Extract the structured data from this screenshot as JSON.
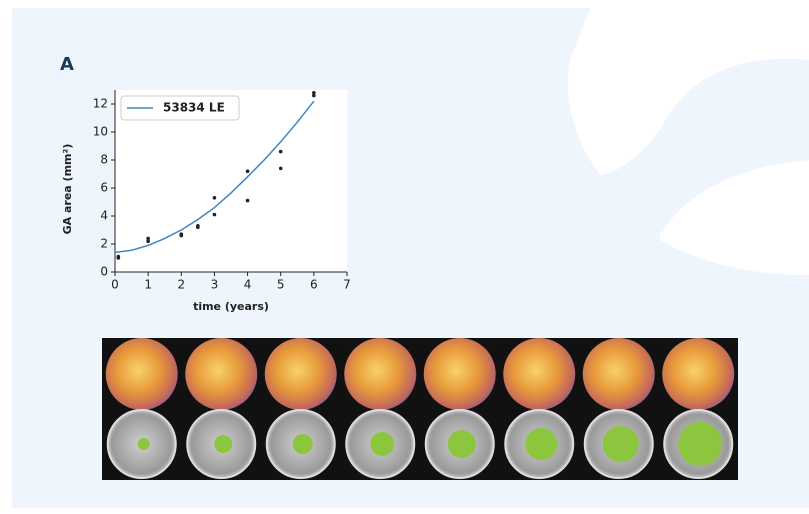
{
  "panel_label": "A",
  "chart_data": {
    "type": "scatter",
    "xlabel": "time (years)",
    "ylabel": "GA area (mm²)",
    "xlim": [
      0,
      7
    ],
    "ylim": [
      0,
      13
    ],
    "xticks": [
      0,
      1,
      2,
      3,
      4,
      5,
      6,
      7
    ],
    "yticks": [
      0,
      2,
      4,
      6,
      8,
      10,
      12
    ],
    "legend": "upper left",
    "series": [
      {
        "name": "53834 LE",
        "color": "#3a86c8",
        "mode": "line",
        "x": [
          0,
          0.5,
          1,
          1.5,
          2,
          2.5,
          3,
          3.5,
          4,
          4.5,
          5,
          5.5,
          6
        ],
        "values": [
          1.4,
          1.55,
          1.9,
          2.4,
          3.0,
          3.75,
          4.6,
          5.65,
          6.8,
          8.0,
          9.3,
          10.7,
          12.2
        ]
      },
      {
        "color": "#222222",
        "mode": "markers",
        "x": [
          0.1,
          0.1,
          1,
          1,
          2,
          2,
          2.5,
          2.5,
          3,
          3,
          4,
          4,
          5,
          5,
          6,
          6
        ],
        "values": [
          1.0,
          1.1,
          2.2,
          2.4,
          2.6,
          2.7,
          3.2,
          3.3,
          4.1,
          5.3,
          5.1,
          7.2,
          7.4,
          8.6,
          12.6,
          12.8
        ]
      }
    ]
  }
}
